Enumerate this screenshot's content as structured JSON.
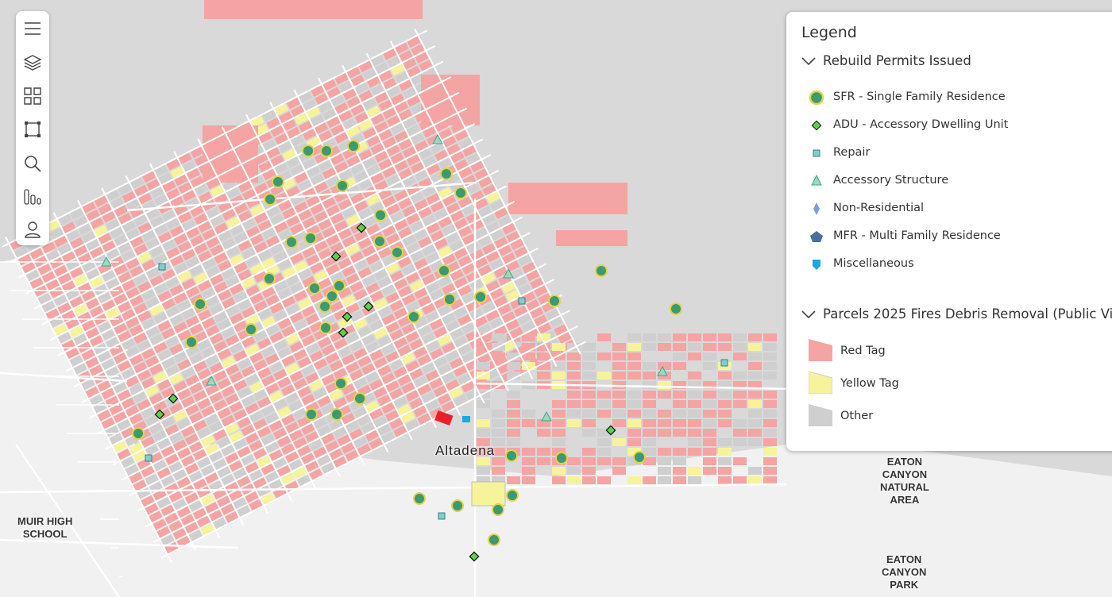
{
  "legend": {
    "title": "Legend",
    "groups": [
      {
        "title": "Rebuild Permits Issued",
        "items": [
          "SFR - Single Family Residence",
          "ADU - Accessory Dwelling Unit",
          "Repair",
          "Accessory Structure",
          "Non-Residential",
          "MFR - Multi Family Residence",
          "Miscellaneous"
        ]
      },
      {
        "title": "Parcels 2025 Fires Debris Removal (Public Vi",
        "items": [
          "Red Tag",
          "Yellow Tag",
          "Other"
        ]
      }
    ]
  },
  "map_labels": {
    "town": "Altadena",
    "park1": "EATON\nCANYON\nNATURAL\nAREA",
    "school": "MUIR HIGH\nSCHOOL",
    "park2": "EATON\nCANYON\nPARK"
  }
}
